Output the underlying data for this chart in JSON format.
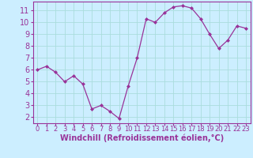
{
  "x": [
    0,
    1,
    2,
    3,
    4,
    5,
    6,
    7,
    8,
    9,
    10,
    11,
    12,
    13,
    14,
    15,
    16,
    17,
    18,
    19,
    20,
    21,
    22,
    23
  ],
  "y": [
    6.0,
    6.3,
    5.8,
    5.0,
    5.5,
    4.8,
    2.7,
    3.0,
    2.5,
    1.9,
    4.6,
    7.0,
    10.3,
    10.0,
    10.8,
    11.3,
    11.4,
    11.2,
    10.3,
    9.0,
    7.8,
    8.5,
    9.7,
    9.5
  ],
  "line_color": "#993399",
  "marker": "D",
  "marker_size": 2,
  "bg_color": "#cceeff",
  "grid_color": "#aadddd",
  "axis_color": "#993399",
  "xlabel": "Windchill (Refroidissement éolien,°C)",
  "xlabel_fontsize": 7,
  "tick_fontsize": 7,
  "xlim": [
    -0.5,
    23.5
  ],
  "ylim": [
    1.5,
    11.75
  ],
  "yticks": [
    2,
    3,
    4,
    5,
    6,
    7,
    8,
    9,
    10,
    11
  ],
  "xticks": [
    0,
    1,
    2,
    3,
    4,
    5,
    6,
    7,
    8,
    9,
    10,
    11,
    12,
    13,
    14,
    15,
    16,
    17,
    18,
    19,
    20,
    21,
    22,
    23
  ]
}
